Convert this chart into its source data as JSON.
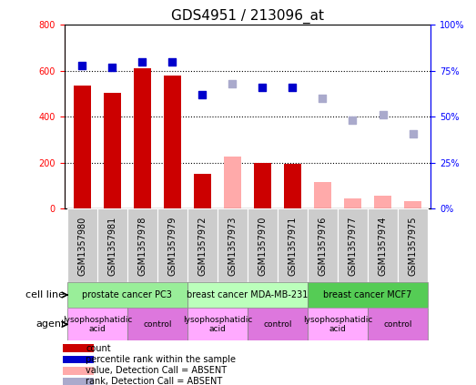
{
  "title": "GDS4951 / 213096_at",
  "samples": [
    "GSM1357980",
    "GSM1357981",
    "GSM1357978",
    "GSM1357979",
    "GSM1357972",
    "GSM1357973",
    "GSM1357970",
    "GSM1357971",
    "GSM1357976",
    "GSM1357977",
    "GSM1357974",
    "GSM1357975"
  ],
  "bar_values": [
    535,
    505,
    610,
    580,
    150,
    null,
    200,
    195,
    null,
    null,
    null,
    null
  ],
  "bar_absent_values": [
    null,
    null,
    null,
    null,
    null,
    228,
    null,
    null,
    118,
    45,
    58,
    32
  ],
  "rank_values": [
    78,
    77,
    80,
    80,
    62,
    null,
    66,
    66,
    null,
    null,
    null,
    null
  ],
  "rank_absent_values": [
    null,
    null,
    null,
    null,
    null,
    68,
    null,
    null,
    60,
    48,
    51,
    41
  ],
  "bar_color": "#cc0000",
  "bar_absent_color": "#ffaaaa",
  "rank_color": "#0000cc",
  "rank_absent_color": "#aaaacc",
  "ylim_left": [
    0,
    800
  ],
  "ylim_right": [
    0,
    100
  ],
  "yticks_left": [
    0,
    200,
    400,
    600,
    800
  ],
  "yticks_right": [
    0,
    25,
    50,
    75,
    100
  ],
  "yticklabels_left": [
    "0",
    "200",
    "400",
    "600",
    "800"
  ],
  "yticklabels_right": [
    "0%",
    "25%",
    "50%",
    "75%",
    "100%"
  ],
  "cell_line_groups": [
    {
      "label": "prostate cancer PC3",
      "start": 0,
      "end": 4,
      "color": "#99ee99"
    },
    {
      "label": "breast cancer MDA-MB-231",
      "start": 4,
      "end": 8,
      "color": "#bbffbb"
    },
    {
      "label": "breast cancer MCF7",
      "start": 8,
      "end": 12,
      "color": "#55cc55"
    }
  ],
  "agent_groups": [
    {
      "label": "lysophosphatidic\nacid",
      "start": 0,
      "end": 2,
      "color": "#ffaaff"
    },
    {
      "label": "control",
      "start": 2,
      "end": 4,
      "color": "#dd77dd"
    },
    {
      "label": "lysophosphatidic\nacid",
      "start": 4,
      "end": 6,
      "color": "#ffaaff"
    },
    {
      "label": "control",
      "start": 6,
      "end": 8,
      "color": "#dd77dd"
    },
    {
      "label": "lysophosphatidic\nacid",
      "start": 8,
      "end": 10,
      "color": "#ffaaff"
    },
    {
      "label": "control",
      "start": 10,
      "end": 12,
      "color": "#dd77dd"
    }
  ],
  "legend_items": [
    {
      "label": "count",
      "color": "#cc0000"
    },
    {
      "label": "percentile rank within the sample",
      "color": "#0000cc"
    },
    {
      "label": "value, Detection Call = ABSENT",
      "color": "#ffaaaa"
    },
    {
      "label": "rank, Detection Call = ABSENT",
      "color": "#aaaacc"
    }
  ],
  "bar_width": 0.6,
  "rank_marker_size": 40,
  "title_fontsize": 11,
  "tick_fontsize": 7,
  "label_fontsize": 8
}
